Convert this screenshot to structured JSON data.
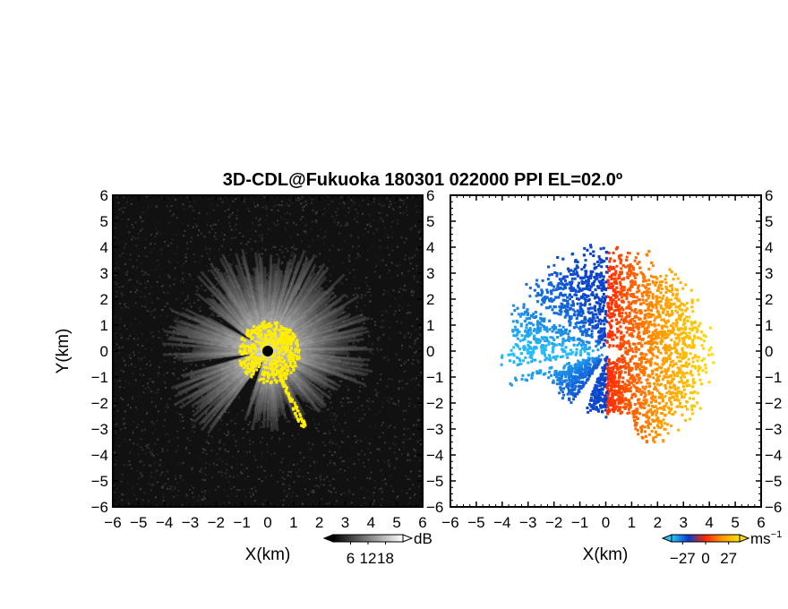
{
  "figure": {
    "title": "3D-CDL@Fukuoka 180301 022000 PPI EL=02.0º"
  },
  "colors": {
    "panel_background_left": "#111111",
    "echo_yellow": "#ffee00",
    "approach_dark": "#0a3cc8",
    "approach_light": "#28c8ff",
    "recede_red": "#ff2a00",
    "recede_orange": "#ff9a00",
    "recede_yellow": "#ffe000"
  },
  "chart_data": [
    {
      "type": "heatmap",
      "panel": "left",
      "quantity": "SNR",
      "xlabel": "X(km)",
      "ylabel": "Y(km)",
      "xlim": [
        -6,
        6
      ],
      "ylim": [
        -6,
        6
      ],
      "xticks": [
        "−6",
        "−5",
        "−4",
        "−3",
        "−2",
        "−1",
        "0",
        "1",
        "2",
        "3",
        "4",
        "5",
        "6"
      ],
      "yticks": [
        "6",
        "5",
        "4",
        "3",
        "2",
        "1",
        "0",
        "−1",
        "−2",
        "−3",
        "−4",
        "−5",
        "−6"
      ],
      "colorbar": {
        "unit": "dB",
        "ticks": [
          "6",
          "12",
          "18"
        ],
        "tick_values": [
          6,
          12,
          18
        ],
        "range": [
          0,
          24
        ],
        "colormap": "black-to-white, yellow above max"
      },
      "features": {
        "radar_center_km": [
          0,
          0
        ],
        "echo_extent_km": 4.2,
        "saturated_region": "yellow within ~1.2 km of radar",
        "blocked_sectors_deg_from_north": [
          [
            200,
            215
          ],
          [
            255,
            262
          ],
          [
            300,
            306
          ]
        ]
      }
    },
    {
      "type": "heatmap",
      "panel": "right",
      "quantity": "Doppler velocity",
      "xlabel": "X(km)",
      "ylabel": "",
      "xlim": [
        -6,
        6
      ],
      "ylim": [
        -6,
        6
      ],
      "xticks": [
        "−6",
        "−5",
        "−4",
        "−3",
        "−2",
        "−1",
        "0",
        "1",
        "2",
        "3",
        "4",
        "5",
        "6"
      ],
      "yticks": [
        "6",
        "5",
        "4",
        "3",
        "2",
        "1",
        "0",
        "−1",
        "−2",
        "−3",
        "−4",
        "−5",
        "−6"
      ],
      "colorbar": {
        "unit": "ms",
        "unit_exponent": "−1",
        "ticks": [
          "−27",
          "0",
          "27"
        ],
        "tick_values": [
          -27,
          0,
          27
        ],
        "range": [
          -40,
          40
        ],
        "colormap": "cyan-blue (negative) to red-orange-yellow (positive)"
      },
      "features": {
        "radar_center_km": [
          0,
          0
        ],
        "echo_extent_km": 4.1,
        "negative_side": "west (x < 0)",
        "positive_side": "east (x > 0)"
      }
    }
  ]
}
